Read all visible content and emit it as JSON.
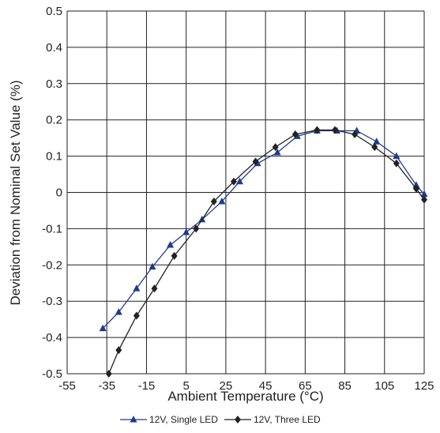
{
  "chart_data": {
    "type": "line",
    "x_label": "Ambient Temperature (°C)",
    "y_label": "Deviation from Nominal Set Value (%)",
    "xlim": [
      -55,
      125
    ],
    "xticks": [
      -55,
      -35,
      -15,
      5,
      25,
      45,
      65,
      85,
      105,
      125
    ],
    "ylim": [
      -0.5,
      0.5
    ],
    "yticks": [
      0.5,
      0.4,
      0.3,
      0.2,
      0.1,
      0,
      -0.1,
      -0.2,
      -0.3,
      -0.4,
      -0.5
    ],
    "grid": true,
    "legend": "bottom",
    "series": [
      {
        "name": "12V, Single LED",
        "color": "#1f3b8c",
        "marker": "triangle",
        "x": [
          -37,
          -29,
          -20,
          -12,
          -3,
          5,
          13,
          23,
          32,
          41,
          51,
          61,
          71,
          81,
          91,
          101,
          111,
          121,
          125
        ],
        "values": [
          -0.375,
          -0.33,
          -0.265,
          -0.205,
          -0.145,
          -0.11,
          -0.075,
          -0.025,
          0.03,
          0.08,
          0.11,
          0.155,
          0.17,
          0.17,
          0.17,
          0.14,
          0.1,
          0.02,
          -0.005
        ]
      },
      {
        "name": "12V, Three LED",
        "color": "#222222",
        "marker": "diamond",
        "x": [
          -34,
          -29,
          -20,
          -11,
          -1,
          10,
          19,
          29,
          40,
          50,
          60,
          71,
          80,
          90,
          100,
          111,
          121,
          125
        ],
        "values": [
          -0.5,
          -0.435,
          -0.34,
          -0.265,
          -0.175,
          -0.1,
          -0.025,
          0.03,
          0.085,
          0.125,
          0.16,
          0.172,
          0.172,
          0.16,
          0.125,
          0.08,
          0.01,
          -0.02
        ]
      }
    ]
  }
}
